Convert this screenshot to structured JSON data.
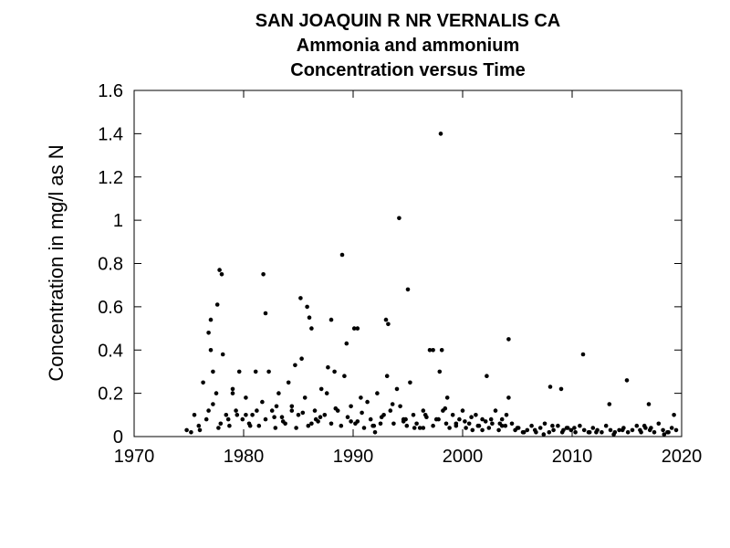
{
  "chart_data": {
    "type": "scatter",
    "title": "SAN JOAQUIN R NR VERNALIS CA",
    "subtitle": "Ammonia and ammonium",
    "subtitle2": "Concentration versus Time",
    "xlabel": "",
    "ylabel": "Concentration in mg/l as N",
    "xlim": [
      1970,
      2020
    ],
    "ylim": [
      0,
      1.6
    ],
    "xticks": [
      "1970",
      "1980",
      "1990",
      "2000",
      "2010",
      "2020"
    ],
    "yticks": [
      "0",
      "0.2",
      "0.4",
      "0.6",
      "0.8",
      "1",
      "1.2",
      "1.4",
      "1.6"
    ],
    "grid": false,
    "legend": "none",
    "marker_color": "#000000",
    "series": [
      {
        "x": [
          1974.8,
          1975.2,
          1975.5,
          1975.9,
          1976.3,
          1976.6,
          1976.8,
          1977.0,
          1977.2,
          1977.5,
          1977.7,
          1977.9,
          1978.1,
          1978.4,
          1978.7,
          1979.0,
          1979.3,
          1979.6,
          1979.9,
          1980.2,
          1980.5,
          1980.8,
          1981.1,
          1981.4,
          1981.7,
          1982.0,
          1982.3,
          1982.6,
          1982.9,
          1983.2,
          1983.5,
          1983.8,
          1984.1,
          1984.4,
          1984.7,
          1985.0,
          1985.3,
          1985.6,
          1985.9,
          1986.2,
          1986.5,
          1986.8,
          1987.1,
          1987.4,
          1987.7,
          1988.0,
          1988.3,
          1988.6,
          1988.9,
          1989.2,
          1989.5,
          1989.8,
          1990.1,
          1990.4,
          1990.7,
          1991.0,
          1991.3,
          1991.6,
          1991.9,
          1992.2,
          1992.5,
          1992.8,
          1993.1,
          1993.4,
          1993.7,
          1994.0,
          1994.3,
          1994.6,
          1994.9,
          1995.2,
          1995.5,
          1995.8,
          1996.1,
          1996.4,
          1996.7,
          1997.0,
          1997.3,
          1997.6,
          1997.9,
          1998.2,
          1998.5,
          1998.8,
          1999.1,
          1999.4,
          1999.7,
          2000.0,
          2000.3,
          2000.6,
          2000.9,
          2001.2,
          2001.5,
          2001.8,
          2002.1,
          2002.4,
          2002.7,
          2003.0,
          2003.3,
          2003.6,
          2003.9,
          2004.2,
          2004.5,
          2004.8,
          2005.1,
          2005.5,
          2005.9,
          2006.3,
          2006.7,
          2007.1,
          2007.5,
          2007.9,
          2008.3,
          2008.7,
          2009.1,
          2009.5,
          2009.9,
          2010.3,
          2010.7,
          2011.1,
          2011.5,
          2011.9,
          2012.3,
          2012.7,
          2013.1,
          2013.5,
          2013.9,
          2014.3,
          2014.7,
          2015.1,
          2015.5,
          2015.9,
          2016.3,
          2016.7,
          2017.1,
          2017.5,
          2017.9,
          2018.3,
          2018.7,
          2019.1,
          2019.5,
          1976.8,
          1977.0,
          1977.6,
          1977.8,
          1978.0,
          1981.8,
          1982.0,
          1985.2,
          1985.8,
          1986.0,
          1988.0,
          1989.0,
          1989.4,
          1990.4,
          1993.0,
          1993.2,
          1994.2,
          1995.0,
          1997.3,
          1998.0,
          1998.1,
          2002.2,
          2004.2,
          2008.0,
          2009.0,
          2011.0,
          2013.4,
          2015.0,
          2017.0,
          2019.3,
          1976.0,
          1977.2,
          1978.6,
          1979.4,
          1980.6,
          1981.2,
          1982.8,
          1983.6,
          1984.4,
          1985.4,
          1986.2,
          1987.0,
          1988.4,
          1989.8,
          1990.8,
          1991.8,
          1992.6,
          1993.6,
          1994.6,
          1995.6,
          1996.6,
          1997.8,
          1998.4,
          1999.4,
          2000.8,
          2001.4,
          2002.6,
          2003.4,
          2004.0,
          2005.0,
          2006.6,
          2008.2,
          2009.2,
          2010.2,
          2012.2,
          2016.2,
          2017.2,
          2018.8,
          1979.0,
          1980.2,
          1983.0,
          1984.8,
          1986.6,
          1987.6,
          1990.2,
          1992.0,
          1994.8,
          1996.4,
          1998.6,
          2000.2,
          2001.8,
          2003.6,
          2005.6,
          2007.4,
          2009.6,
          2011.6,
          2013.8,
          2014.6,
          2016.6,
          2018.4
        ],
        "y": [
          0.03,
          0.02,
          0.1,
          0.05,
          0.25,
          0.08,
          0.12,
          0.54,
          0.3,
          0.2,
          0.04,
          0.06,
          0.38,
          0.1,
          0.05,
          0.22,
          0.12,
          0.3,
          0.08,
          0.18,
          0.06,
          0.1,
          0.3,
          0.05,
          0.16,
          0.08,
          0.3,
          0.12,
          0.04,
          0.2,
          0.09,
          0.06,
          0.25,
          0.12,
          0.33,
          0.1,
          0.36,
          0.18,
          0.05,
          0.5,
          0.12,
          0.07,
          0.22,
          0.1,
          0.32,
          0.06,
          0.3,
          0.12,
          0.05,
          0.28,
          0.09,
          0.14,
          0.5,
          0.07,
          0.18,
          0.04,
          0.16,
          0.08,
          0.05,
          0.2,
          0.06,
          0.1,
          0.28,
          0.12,
          0.06,
          0.22,
          0.14,
          0.08,
          0.05,
          0.25,
          0.1,
          0.06,
          0.04,
          0.12,
          0.09,
          0.4,
          0.05,
          0.08,
          0.3,
          0.12,
          0.06,
          0.04,
          0.1,
          0.05,
          0.08,
          0.12,
          0.04,
          0.06,
          0.03,
          0.1,
          0.05,
          0.08,
          0.07,
          0.04,
          0.06,
          0.12,
          0.03,
          0.08,
          0.05,
          0.18,
          0.06,
          0.03,
          0.04,
          0.02,
          0.03,
          0.05,
          0.02,
          0.04,
          0.06,
          0.02,
          0.03,
          0.05,
          0.02,
          0.04,
          0.03,
          0.02,
          0.05,
          0.03,
          0.02,
          0.04,
          0.03,
          0.02,
          0.05,
          0.03,
          0.02,
          0.03,
          0.04,
          0.02,
          0.03,
          0.05,
          0.02,
          0.04,
          0.03,
          0.02,
          0.06,
          0.03,
          0.02,
          0.04,
          0.03,
          0.48,
          0.4,
          0.61,
          0.77,
          0.75,
          0.75,
          0.57,
          0.64,
          0.6,
          0.55,
          0.54,
          0.84,
          0.43,
          0.5,
          0.54,
          0.52,
          1.01,
          0.68,
          0.4,
          1.4,
          0.4,
          0.28,
          0.45,
          0.23,
          0.22,
          0.38,
          0.15,
          0.26,
          0.15,
          0.1,
          0.03,
          0.15,
          0.08,
          0.1,
          0.05,
          0.12,
          0.09,
          0.07,
          0.14,
          0.11,
          0.06,
          0.09,
          0.13,
          0.07,
          0.11,
          0.05,
          0.09,
          0.15,
          0.07,
          0.04,
          0.1,
          0.08,
          0.13,
          0.06,
          0.09,
          0.05,
          0.08,
          0.06,
          0.1,
          0.04,
          0.03,
          0.05,
          0.03,
          0.04,
          0.02,
          0.03,
          0.04,
          0.02,
          0.2,
          0.1,
          0.14,
          0.04,
          0.08,
          0.2,
          0.06,
          0.02,
          0.08,
          0.04,
          0.18,
          0.07,
          0.03,
          0.05,
          0.02,
          0.01,
          0.04,
          0.02,
          0.01,
          0.03,
          0.05,
          0.01
        ]
      }
    ]
  }
}
